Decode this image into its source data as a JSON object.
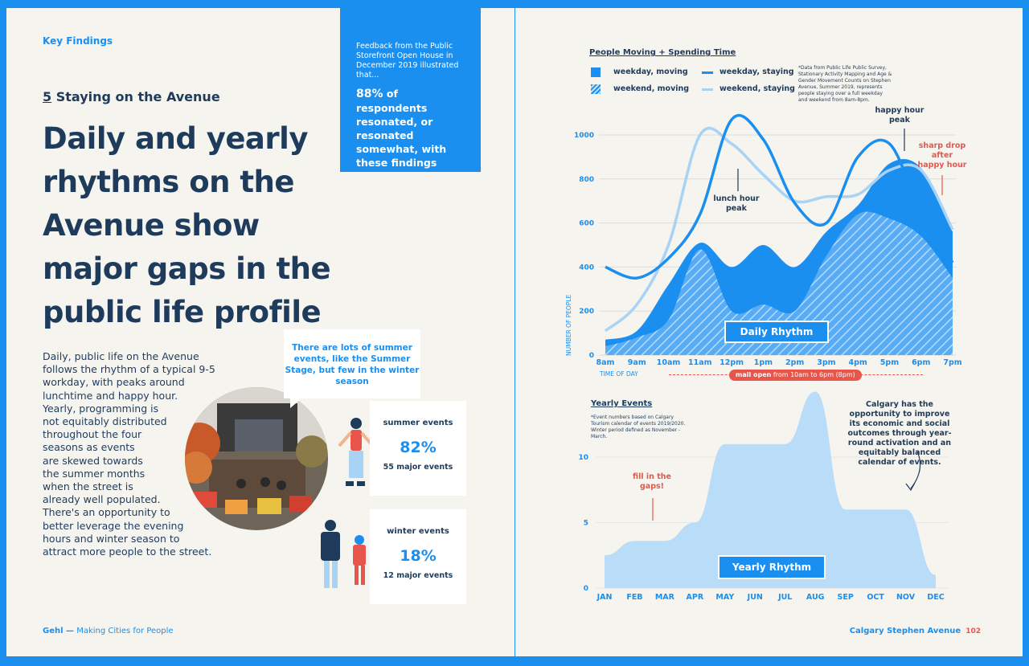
{
  "left": {
    "kicker": "Key Findings",
    "section_num": "5",
    "section_title": "Staying on the Avenue",
    "headline": "Daily and yearly rhythms on the Avenue show major gaps in the public life profile",
    "body_lines": [
      "Daily, public life on the Avenue",
      "follows the rhythm of a typical 9-5",
      "workday, with peaks around",
      "lunchtime and happy hour.",
      "Yearly, programming is",
      "not equitably distributed",
      "throughout the four",
      "seasons as events",
      "are skewed towards",
      "the summer months",
      "when the street is",
      "already well populated.",
      "There's an opportunity to",
      "better leverage the evening",
      "hours and winter season to",
      "attract more people to the street."
    ],
    "feedback_small": "Feedback from the Public Storefront Open House in December 2019 illustrated that...",
    "feedback_pct": "88%",
    "feedback_big": "of respondents resonated, or resonated somewhat, with these findings",
    "callout": "There are lots of summer events, like the Summer Stage, but few in the winter season",
    "summer": {
      "title": "summer events",
      "pct": "82%",
      "sub": "55 major events"
    },
    "winter": {
      "title": "winter events",
      "pct": "18%",
      "sub": "12 major events"
    },
    "footer_brand": "Gehl —",
    "footer_tag": "Making Cities for People"
  },
  "right": {
    "footer": "Calgary Stephen Avenue",
    "page_number": "102",
    "legend_title": "People Moving + Spending Time",
    "legend": {
      "wm": "weekday, moving",
      "ws": "weekday, staying",
      "em": "weekend, moving",
      "es": "weekend, staying"
    },
    "daily_note": "*Data from Public Life Public Survey, Stationary Activity Mapping and Age & Gender Movement Counts on Stephen Avenue, Summer 2019, represents people staying over a full weekday and weekend from 8am-8pm.",
    "annot_lunch": "lunch hour peak",
    "annot_happy": "happy hour peak",
    "annot_drop": "sharp drop after happy hour",
    "daily_label": "Daily Rhythm",
    "ylabel": "NUMBER OF PEOPLE",
    "xlabel": "TIME OF DAY",
    "mall_open_bold": "mall open",
    "mall_open_rest": "from 10am to 6pm (8pm)",
    "yearly_title": "Yearly Events",
    "yearly_note": "*Event numbers based on Calgary Tourism calendar of events 2019/2020. Winter period defined as November - March.",
    "annot_fill": "fill in the gaps!",
    "annot_calgary": "Calgary has the opportunity to improve its economic and social outcomes through year-round activation and an equitably balanced calendar of events.",
    "yearly_label": "Yearly Rhythm"
  },
  "chart_data": [
    {
      "type": "area",
      "title": "People Moving + Spending Time",
      "xlabel": "TIME OF DAY",
      "ylabel": "NUMBER OF PEOPLE",
      "categories": [
        "8am",
        "9am",
        "10am",
        "11am",
        "12pm",
        "1pm",
        "2pm",
        "3pm",
        "4pm",
        "5pm",
        "6pm",
        "7pm"
      ],
      "y_ticks": [
        0,
        200,
        400,
        600,
        800,
        1000
      ],
      "ylim": [
        0,
        1100
      ],
      "series": [
        {
          "name": "weekday, staying",
          "values": [
            400,
            350,
            440,
            640,
            1070,
            980,
            690,
            600,
            900,
            960,
            650,
            420
          ]
        },
        {
          "name": "weekend, staying",
          "values": [
            110,
            230,
            500,
            1000,
            960,
            820,
            700,
            720,
            730,
            840,
            840,
            570
          ]
        },
        {
          "name": "weekday, moving",
          "values": [
            70,
            110,
            320,
            510,
            400,
            500,
            400,
            560,
            680,
            870,
            850,
            560
          ]
        },
        {
          "name": "weekend, moving",
          "values": [
            40,
            80,
            160,
            480,
            200,
            230,
            200,
            450,
            640,
            620,
            540,
            350
          ]
        }
      ]
    },
    {
      "type": "area",
      "title": "Yearly Events",
      "categories": [
        "JAN",
        "FEB",
        "MAR",
        "APR",
        "MAY",
        "JUN",
        "JUL",
        "AUG",
        "SEP",
        "OCT",
        "NOV",
        "DEC"
      ],
      "y_ticks": [
        0,
        5,
        10
      ],
      "ylim": [
        0,
        15
      ],
      "values": [
        2.5,
        3.6,
        3.6,
        5,
        11,
        11,
        11,
        15,
        6,
        6,
        6,
        1
      ]
    }
  ]
}
